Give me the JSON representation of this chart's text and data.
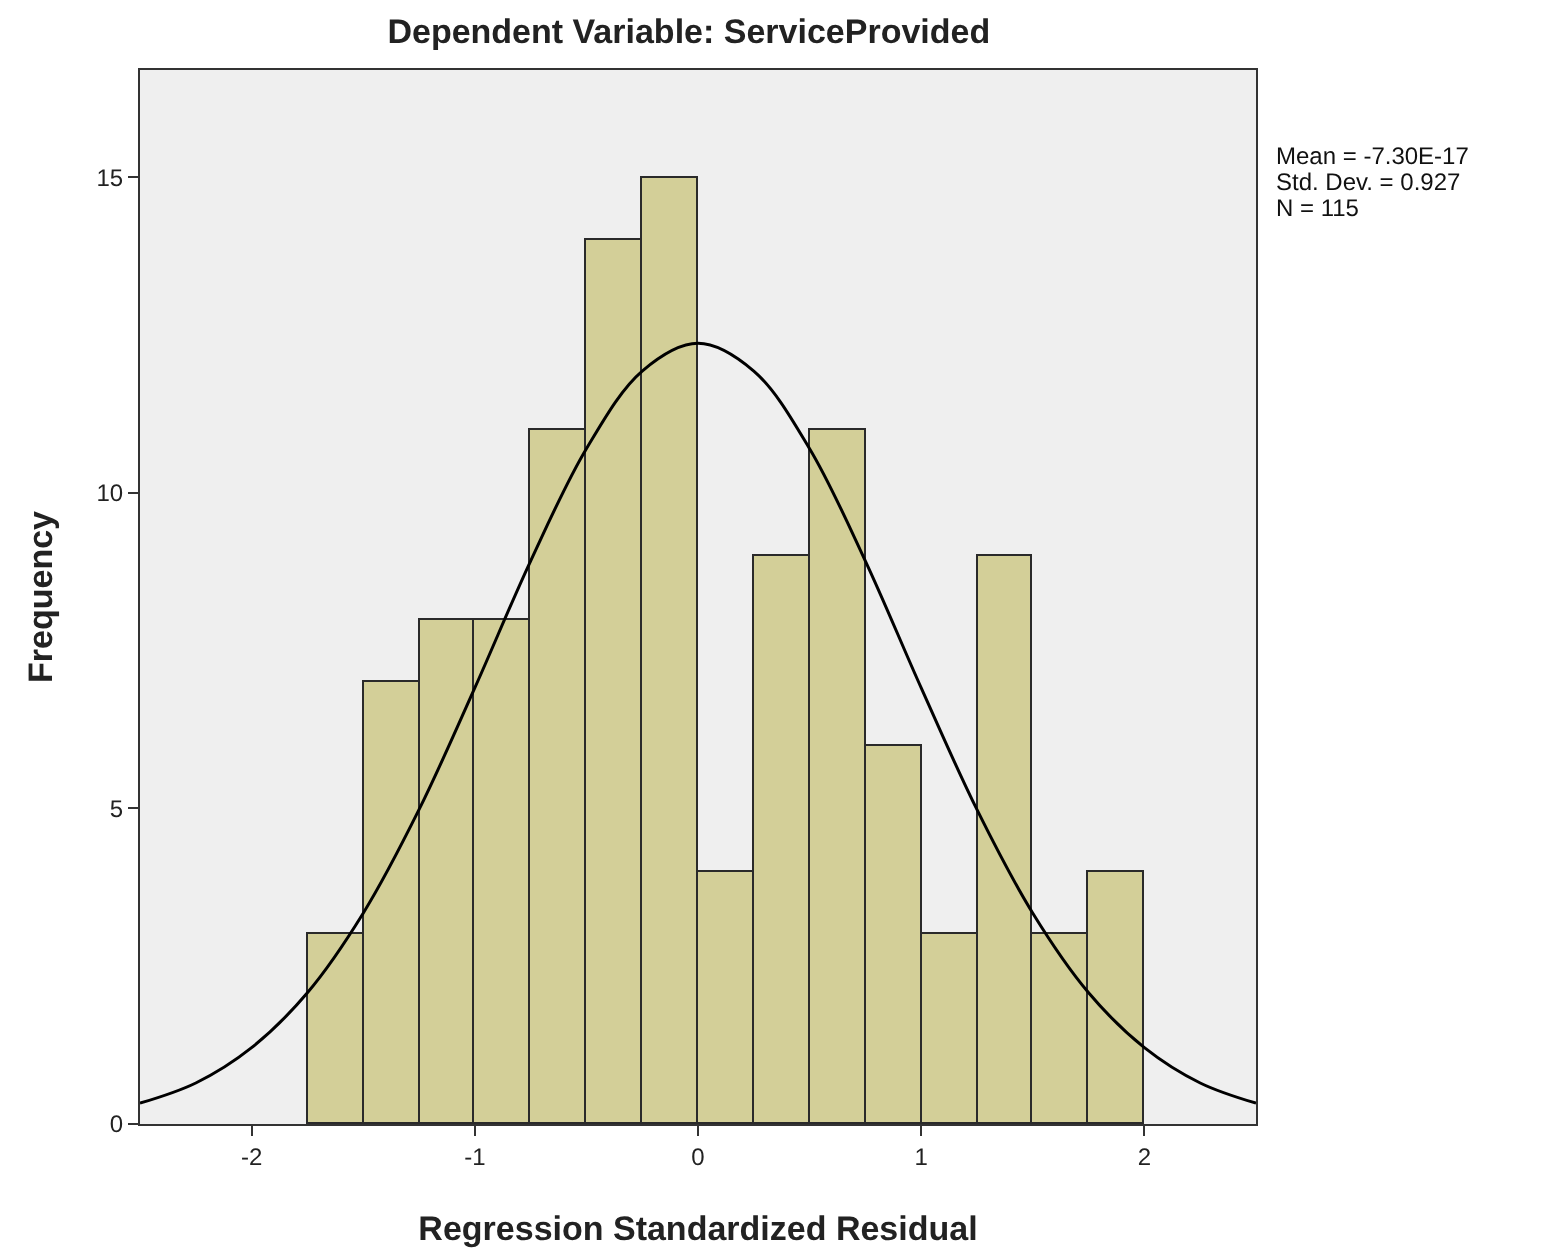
{
  "chart_data": {
    "type": "histogram",
    "title": "Dependent Variable: ServiceProvided",
    "xlabel": "Regression Standardized Residual",
    "ylabel": "Frequency",
    "bins": [
      -1.75,
      -1.5,
      -1.25,
      -1.0,
      -0.75,
      -0.5,
      -0.25,
      0,
      0.25,
      0.5,
      0.75,
      1.0,
      1.25,
      1.5,
      1.75,
      2.0
    ],
    "values": [
      3,
      7,
      8,
      8,
      11,
      14,
      15,
      4,
      9,
      11,
      6,
      3,
      9,
      3,
      4
    ],
    "color": "#d3cf98",
    "series": [
      {
        "type": "line",
        "color": "#000000",
        "x": [
          -2.5,
          -2.25,
          -2,
          -1.75,
          -1.5,
          -1.25,
          -1,
          -0.75,
          -0.5,
          -0.25,
          0,
          0.25,
          0.5,
          0.75,
          1,
          1.25,
          1.5,
          1.75,
          2,
          2.25,
          2.5
        ],
        "values": [
          0.33,
          0.65,
          1.21,
          2.08,
          3.34,
          4.98,
          6.91,
          8.92,
          10.7,
          11.93,
          12.37,
          11.93,
          10.7,
          8.92,
          6.91,
          4.98,
          3.34,
          2.08,
          1.21,
          0.65,
          0.33
        ]
      }
    ],
    "xlim": [
      -2.5,
      2.5
    ],
    "xticks": [
      -2,
      -1,
      0,
      1,
      2
    ],
    "ylim": [
      0,
      16.7
    ],
    "yticks": [
      0,
      5,
      10,
      15
    ],
    "annotations": [
      "Mean = -7.30E-17",
      "Std. Dev. = 0.927",
      "N = 115"
    ],
    "grid": false
  }
}
